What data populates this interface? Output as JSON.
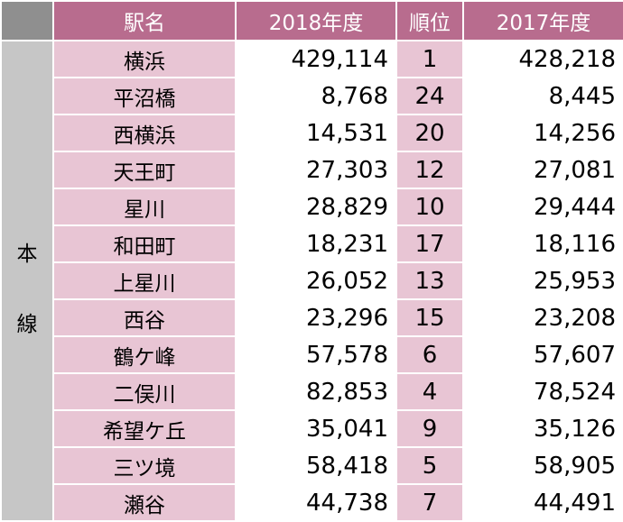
{
  "header": {
    "station": "駅名",
    "y2018": "2018年度",
    "rank": "順位",
    "y2017": "2017年度"
  },
  "line_label": [
    "本",
    "線"
  ],
  "rows": [
    {
      "station": "横浜",
      "y2018": "429,114",
      "rank": "1",
      "y2017": "428,218"
    },
    {
      "station": "平沼橋",
      "y2018": "8,768",
      "rank": "24",
      "y2017": "8,445"
    },
    {
      "station": "西横浜",
      "y2018": "14,531",
      "rank": "20",
      "y2017": "14,256"
    },
    {
      "station": "天王町",
      "y2018": "27,303",
      "rank": "12",
      "y2017": "27,081"
    },
    {
      "station": "星川",
      "y2018": "28,829",
      "rank": "10",
      "y2017": "29,444"
    },
    {
      "station": "和田町",
      "y2018": "18,231",
      "rank": "17",
      "y2017": "18,116"
    },
    {
      "station": "上星川",
      "y2018": "26,052",
      "rank": "13",
      "y2017": "25,953"
    },
    {
      "station": "西谷",
      "y2018": "23,296",
      "rank": "15",
      "y2017": "23,208"
    },
    {
      "station": "鶴ケ峰",
      "y2018": "57,578",
      "rank": "6",
      "y2017": "57,607"
    },
    {
      "station": "二俣川",
      "y2018": "82,853",
      "rank": "4",
      "y2017": "78,524"
    },
    {
      "station": "希望ケ丘",
      "y2018": "35,041",
      "rank": "9",
      "y2017": "35,126"
    },
    {
      "station": "三ツ境",
      "y2018": "58,418",
      "rank": "5",
      "y2017": "58,905"
    },
    {
      "station": "瀬谷",
      "y2018": "44,738",
      "rank": "7",
      "y2017": "44,491"
    }
  ]
}
